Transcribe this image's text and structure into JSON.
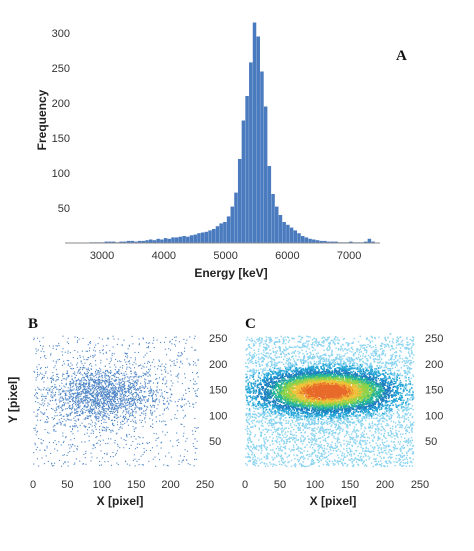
{
  "chart_data": [
    {
      "type": "bar",
      "panel_label": "A",
      "xlabel": "Energy  [keV]",
      "ylabel": "Frequency",
      "xlim": [
        2400,
        7500
      ],
      "ylim": [
        0,
        330
      ],
      "x_ticks": [
        3000,
        4000,
        5000,
        6000,
        7000
      ],
      "y_ticks": [
        50,
        100,
        150,
        200,
        250,
        300
      ],
      "bin_width": 60,
      "color": "#4a7bbf",
      "x": [
        2800,
        2860,
        2920,
        2980,
        3040,
        3100,
        3160,
        3220,
        3280,
        3340,
        3400,
        3460,
        3520,
        3580,
        3640,
        3700,
        3760,
        3820,
        3880,
        3940,
        4000,
        4060,
        4120,
        4180,
        4240,
        4300,
        4360,
        4420,
        4480,
        4540,
        4600,
        4660,
        4720,
        4780,
        4840,
        4900,
        4960,
        5020,
        5080,
        5140,
        5200,
        5260,
        5320,
        5380,
        5440,
        5500,
        5560,
        5620,
        5680,
        5740,
        5800,
        5860,
        5920,
        5980,
        6040,
        6100,
        6160,
        6220,
        6280,
        6340,
        6400,
        6460,
        6520,
        6580,
        6640,
        6700,
        6760,
        6820,
        6880,
        6940,
        7000,
        7060,
        7120,
        7180,
        7240,
        7300,
        7360
      ],
      "values": [
        1,
        1,
        1,
        1,
        2,
        2,
        2,
        1,
        2,
        2,
        3,
        3,
        2,
        3,
        3,
        4,
        5,
        4,
        6,
        5,
        7,
        6,
        8,
        8,
        9,
        10,
        9,
        11,
        12,
        14,
        15,
        16,
        18,
        20,
        24,
        28,
        30,
        38,
        52,
        72,
        120,
        175,
        210,
        258,
        315,
        295,
        245,
        195,
        110,
        70,
        52,
        40,
        30,
        26,
        22,
        18,
        14,
        10,
        8,
        6,
        5,
        4,
        3,
        3,
        2,
        2,
        2,
        1,
        1,
        1,
        2,
        1,
        1,
        1,
        2,
        6,
        2
      ]
    },
    {
      "type": "scatter",
      "panel_label": "B",
      "xlabel": "X [pixel]",
      "ylabel": "Y [pixel]",
      "xlim": [
        0,
        250
      ],
      "ylim": [
        0,
        260
      ],
      "x_ticks": [
        0,
        50,
        100,
        150,
        200,
        250
      ],
      "y_ticks": [
        50,
        100,
        150,
        200,
        250
      ],
      "point_color": "#4f86c6",
      "distribution": {
        "cluster_center": [
          100,
          140
        ],
        "cluster_spread": [
          42,
          28
        ],
        "n_cluster_points": 1900,
        "n_background_points": 900
      }
    },
    {
      "type": "heatmap",
      "panel_label": "C",
      "xlabel": "X [pixel]",
      "ylabel": "",
      "xlim": [
        0,
        250
      ],
      "ylim": [
        0,
        260
      ],
      "x_ticks": [
        0,
        50,
        100,
        150,
        200,
        250
      ],
      "y_ticks": [
        50,
        100,
        150,
        200,
        250
      ],
      "colormap": [
        "#8ad4f0",
        "#29a8d8",
        "#1f7fc1",
        "#27b59a",
        "#8cd34a",
        "#f0c23b",
        "#e86b2c"
      ],
      "distribution": {
        "cluster_center": [
          115,
          148
        ],
        "cluster_spread": [
          48,
          26
        ],
        "n_points": 16000,
        "n_background_points": 3500
      }
    }
  ]
}
